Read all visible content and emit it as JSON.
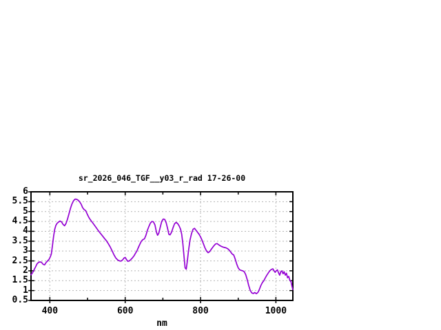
{
  "window": {
    "background": "#ffffff"
  },
  "chart_data": {
    "type": "line",
    "title": "sr_2026_046_TGF__y03_r_rad 17-26-00",
    "xlabel": "nm",
    "ylabel": "",
    "xlim": [
      350,
      1045
    ],
    "ylim": [
      0.5,
      6
    ],
    "x_ticks": [
      400,
      600,
      800,
      1000
    ],
    "x_minor_ticks": [
      500,
      700,
      900
    ],
    "y_ticks": [
      0.5,
      1,
      1.5,
      2,
      2.5,
      3,
      3.5,
      4,
      4.5,
      5,
      5.5,
      6
    ],
    "grid": true,
    "legend_position": "none",
    "line_color": "#9400d3",
    "grid_color": "#b4b4b4",
    "axis_color": "#000000",
    "series": [
      {
        "name": "sr_2026_046_TGF__y03_r_rad",
        "points": [
          [
            350,
            1.8
          ],
          [
            354,
            1.9
          ],
          [
            358,
            2.05
          ],
          [
            362,
            2.2
          ],
          [
            366,
            2.35
          ],
          [
            370,
            2.43
          ],
          [
            374,
            2.45
          ],
          [
            378,
            2.43
          ],
          [
            382,
            2.33
          ],
          [
            386,
            2.3
          ],
          [
            390,
            2.42
          ],
          [
            394,
            2.5
          ],
          [
            398,
            2.58
          ],
          [
            401,
            2.7
          ],
          [
            404,
            2.85
          ],
          [
            407,
            3.3
          ],
          [
            410,
            3.75
          ],
          [
            413,
            4.1
          ],
          [
            416,
            4.3
          ],
          [
            419,
            4.4
          ],
          [
            423,
            4.47
          ],
          [
            427,
            4.52
          ],
          [
            431,
            4.48
          ],
          [
            435,
            4.35
          ],
          [
            439,
            4.28
          ],
          [
            443,
            4.4
          ],
          [
            447,
            4.62
          ],
          [
            451,
            4.9
          ],
          [
            455,
            5.18
          ],
          [
            459,
            5.4
          ],
          [
            463,
            5.55
          ],
          [
            467,
            5.63
          ],
          [
            471,
            5.62
          ],
          [
            475,
            5.58
          ],
          [
            479,
            5.5
          ],
          [
            483,
            5.38
          ],
          [
            487,
            5.2
          ],
          [
            491,
            5.1
          ],
          [
            495,
            5.05
          ],
          [
            499,
            4.88
          ],
          [
            503,
            4.72
          ],
          [
            507,
            4.6
          ],
          [
            511,
            4.5
          ],
          [
            515,
            4.4
          ],
          [
            520,
            4.27
          ],
          [
            525,
            4.13
          ],
          [
            530,
            4.0
          ],
          [
            535,
            3.88
          ],
          [
            540,
            3.76
          ],
          [
            545,
            3.64
          ],
          [
            550,
            3.52
          ],
          [
            555,
            3.38
          ],
          [
            560,
            3.22
          ],
          [
            565,
            3.02
          ],
          [
            570,
            2.82
          ],
          [
            575,
            2.65
          ],
          [
            580,
            2.55
          ],
          [
            585,
            2.5
          ],
          [
            589,
            2.49
          ],
          [
            593,
            2.55
          ],
          [
            597,
            2.65
          ],
          [
            600,
            2.68
          ],
          [
            603,
            2.58
          ],
          [
            607,
            2.48
          ],
          [
            611,
            2.5
          ],
          [
            615,
            2.57
          ],
          [
            619,
            2.65
          ],
          [
            623,
            2.75
          ],
          [
            627,
            2.88
          ],
          [
            631,
            3.0
          ],
          [
            635,
            3.18
          ],
          [
            639,
            3.35
          ],
          [
            643,
            3.5
          ],
          [
            647,
            3.58
          ],
          [
            651,
            3.62
          ],
          [
            655,
            3.8
          ],
          [
            659,
            4.05
          ],
          [
            663,
            4.25
          ],
          [
            667,
            4.42
          ],
          [
            671,
            4.5
          ],
          [
            675,
            4.48
          ],
          [
            679,
            4.32
          ],
          [
            683,
            3.95
          ],
          [
            686,
            3.8
          ],
          [
            689,
            3.9
          ],
          [
            693,
            4.2
          ],
          [
            697,
            4.5
          ],
          [
            701,
            4.62
          ],
          [
            705,
            4.6
          ],
          [
            709,
            4.42
          ],
          [
            713,
            4.1
          ],
          [
            716,
            3.85
          ],
          [
            719,
            3.82
          ],
          [
            723,
            3.95
          ],
          [
            727,
            4.18
          ],
          [
            731,
            4.38
          ],
          [
            735,
            4.45
          ],
          [
            739,
            4.4
          ],
          [
            743,
            4.28
          ],
          [
            747,
            4.1
          ],
          [
            750,
            3.85
          ],
          [
            753,
            3.4
          ],
          [
            756,
            2.75
          ],
          [
            759,
            2.15
          ],
          [
            762,
            2.08
          ],
          [
            765,
            2.5
          ],
          [
            768,
            3.0
          ],
          [
            772,
            3.55
          ],
          [
            776,
            3.88
          ],
          [
            780,
            4.1
          ],
          [
            784,
            4.15
          ],
          [
            788,
            4.05
          ],
          [
            792,
            3.95
          ],
          [
            796,
            3.85
          ],
          [
            800,
            3.72
          ],
          [
            804,
            3.55
          ],
          [
            808,
            3.35
          ],
          [
            812,
            3.15
          ],
          [
            816,
            3.0
          ],
          [
            820,
            2.92
          ],
          [
            824,
            2.97
          ],
          [
            828,
            3.08
          ],
          [
            832,
            3.18
          ],
          [
            836,
            3.28
          ],
          [
            840,
            3.36
          ],
          [
            844,
            3.38
          ],
          [
            848,
            3.32
          ],
          [
            852,
            3.27
          ],
          [
            856,
            3.23
          ],
          [
            860,
            3.2
          ],
          [
            864,
            3.18
          ],
          [
            868,
            3.16
          ],
          [
            872,
            3.12
          ],
          [
            876,
            3.05
          ],
          [
            880,
            2.95
          ],
          [
            884,
            2.85
          ],
          [
            888,
            2.8
          ],
          [
            892,
            2.6
          ],
          [
            896,
            2.35
          ],
          [
            900,
            2.15
          ],
          [
            904,
            2.05
          ],
          [
            908,
            2.02
          ],
          [
            912,
            2.0
          ],
          [
            916,
            1.95
          ],
          [
            920,
            1.8
          ],
          [
            924,
            1.55
          ],
          [
            928,
            1.25
          ],
          [
            932,
            1.0
          ],
          [
            936,
            0.88
          ],
          [
            940,
            0.85
          ],
          [
            944,
            0.9
          ],
          [
            948,
            0.84
          ],
          [
            952,
            0.9
          ],
          [
            956,
            1.05
          ],
          [
            960,
            1.25
          ],
          [
            964,
            1.4
          ],
          [
            968,
            1.5
          ],
          [
            972,
            1.65
          ],
          [
            976,
            1.78
          ],
          [
            980,
            1.9
          ],
          [
            984,
            2.0
          ],
          [
            988,
            2.07
          ],
          [
            992,
            2.1
          ],
          [
            995,
            2.0
          ],
          [
            998,
            1.92
          ],
          [
            1001,
            2.0
          ],
          [
            1004,
            2.05
          ],
          [
            1007,
            1.9
          ],
          [
            1010,
            1.78
          ],
          [
            1013,
            1.95
          ],
          [
            1016,
            2.0
          ],
          [
            1019,
            1.85
          ],
          [
            1022,
            1.95
          ],
          [
            1025,
            1.78
          ],
          [
            1028,
            1.88
          ],
          [
            1031,
            1.65
          ],
          [
            1034,
            1.72
          ],
          [
            1037,
            1.52
          ],
          [
            1040,
            1.45
          ],
          [
            1043,
            1.2
          ],
          [
            1045,
            1.05
          ]
        ]
      }
    ]
  }
}
